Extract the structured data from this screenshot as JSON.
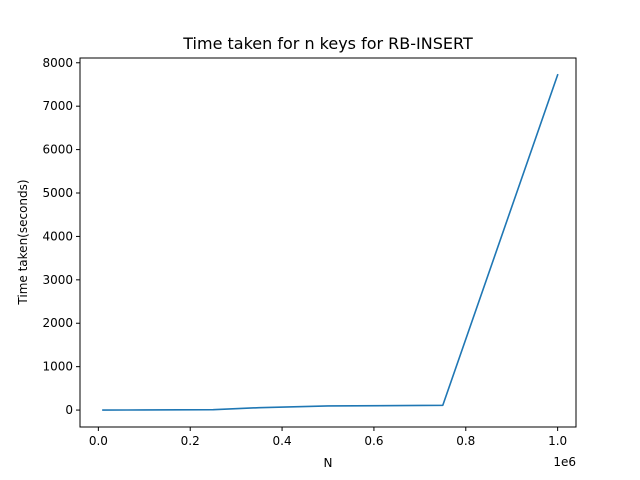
{
  "chart_data": {
    "type": "line",
    "title": "Time taken for n keys for RB-INSERT",
    "xlabel": "N",
    "ylabel": "Time taken(seconds)",
    "x_offset_label": "1e6",
    "xlim": [
      -0.04,
      1.04
    ],
    "ylim": [
      -390,
      8110
    ],
    "xticks": [
      0.0,
      0.2,
      0.4,
      0.6,
      0.8,
      1.0
    ],
    "xtick_labels": [
      "0.0",
      "0.2",
      "0.4",
      "0.6",
      "0.8",
      "1.0"
    ],
    "yticks": [
      0,
      1000,
      2000,
      3000,
      4000,
      5000,
      6000,
      7000,
      8000
    ],
    "ytick_labels": [
      "0",
      "1000",
      "2000",
      "3000",
      "4000",
      "5000",
      "6000",
      "7000",
      "8000"
    ],
    "grid": false,
    "series": [
      {
        "color": "#1f77b4",
        "x": [
          0.01,
          0.1,
          0.25,
          0.35,
          0.5,
          0.75,
          1.0
        ],
        "y": [
          1,
          2,
          8,
          55,
          95,
          110,
          7720
        ]
      }
    ]
  }
}
